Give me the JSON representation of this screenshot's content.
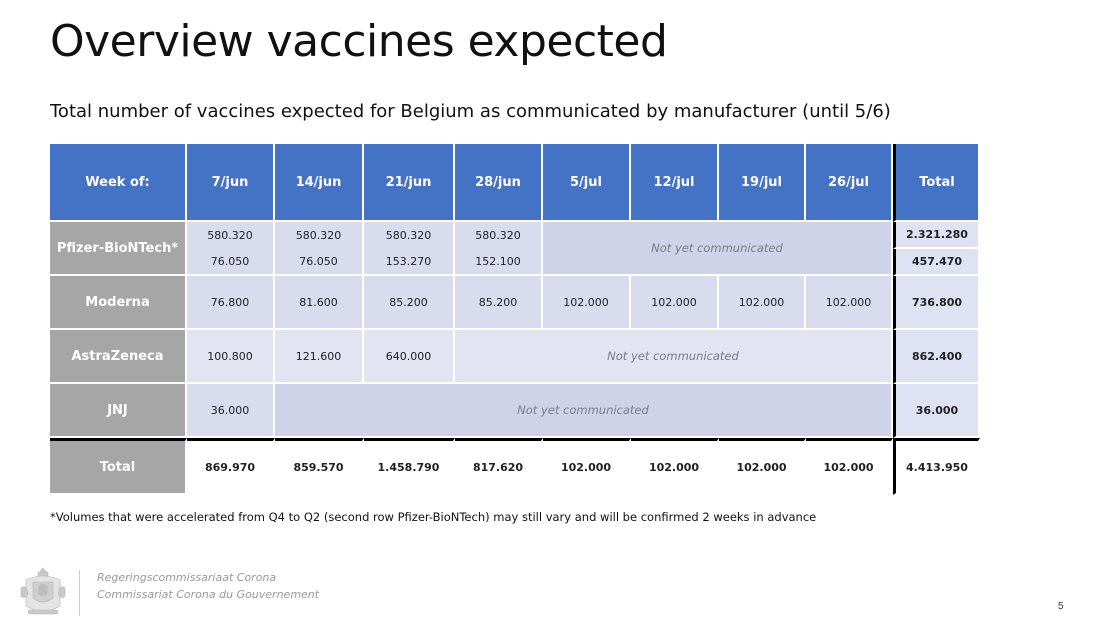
{
  "title": "Overview vaccines expected",
  "subtitle": "Total number of vaccines expected for Belgium as communicated by manufacturer (until 5/6)",
  "table": {
    "corner": "Week of:",
    "weeks": [
      "7/jun",
      "14/jun",
      "21/jun",
      "28/jun",
      "5/jul",
      "12/jul",
      "19/jul",
      "26/jul"
    ],
    "total_header": "Total",
    "not_communicated": "Not yet communicated",
    "pfizer": {
      "name": "Pfizer-BioNTech*",
      "row1": [
        "580.320",
        "580.320",
        "580.320",
        "580.320"
      ],
      "row1_total": "2.321.280",
      "row2": [
        "76.050",
        "76.050",
        "153.270",
        "152.100"
      ],
      "row2_total": "457.470"
    },
    "moderna": {
      "name": "Moderna",
      "values": [
        "76.800",
        "81.600",
        "85.200",
        "85.200",
        "102.000",
        "102.000",
        "102.000",
        "102.000"
      ],
      "total": "736.800"
    },
    "astrazeneca": {
      "name": "AstraZeneca",
      "values": [
        "100.800",
        "121.600",
        "640.000"
      ],
      "total": "862.400"
    },
    "jnj": {
      "name": "JNJ",
      "values": [
        "36.000"
      ],
      "total": "36.000"
    },
    "total_row": {
      "name": "Total",
      "values": [
        "869.970",
        "859.570",
        "1.458.790",
        "817.620",
        "102.000",
        "102.000",
        "102.000",
        "102.000"
      ],
      "total": "4.413.950"
    }
  },
  "footnote": "*Volumes that were accelerated from Q4 to Q2 (second row Pfizer-BioNTech) may still vary and will be confirmed 2 weeks in advance",
  "footer": {
    "org_nl": "Regeringscommissariaat Corona",
    "org_fr": "Commissariat Corona du Gouvernement",
    "page": "5"
  }
}
